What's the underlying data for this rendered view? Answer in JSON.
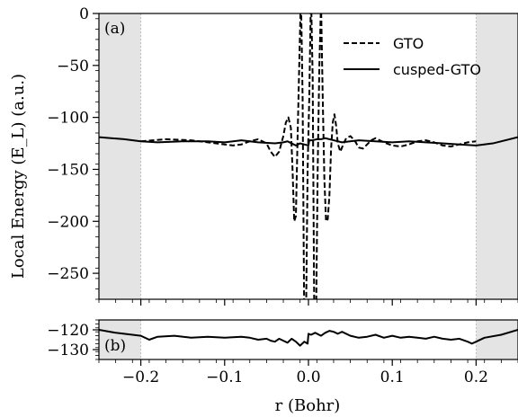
{
  "chart_data": [
    {
      "panel": "(a)",
      "type": "line",
      "xlabel": "r (Bohr)",
      "ylabel": "Local Energy (E_L) (a.u.)",
      "xlim": [
        -0.25,
        0.25
      ],
      "ylim": [
        -275,
        0
      ],
      "yticks": [
        0,
        -50,
        -100,
        -150,
        -200,
        -250
      ],
      "ytick_labels": [
        "0",
        "−50",
        "−100",
        "−150",
        "−200",
        "−250"
      ],
      "shaded_regions": [
        [
          -0.25,
          -0.2
        ],
        [
          0.2,
          0.25
        ]
      ],
      "shade_color": "#e4e4e4",
      "legend": {
        "position": "top-right"
      },
      "series": [
        {
          "name": "GTO",
          "style": "dashed",
          "color": "#000000",
          "x": [
            -0.2,
            -0.17,
            -0.14,
            -0.12,
            -0.1,
            -0.09,
            -0.08,
            -0.07,
            -0.06,
            -0.05,
            -0.045,
            -0.04,
            -0.035,
            -0.03,
            -0.027,
            -0.024,
            -0.021,
            -0.019,
            -0.017,
            -0.015,
            -0.013,
            -0.011,
            -0.009,
            -0.007,
            -0.005,
            -0.003,
            -0.001,
            0.001,
            0.003,
            0.005,
            0.007,
            0.009,
            0.011,
            0.013,
            0.015,
            0.017,
            0.019,
            0.021,
            0.023,
            0.025,
            0.027,
            0.029,
            0.031,
            0.033,
            0.035,
            0.038,
            0.041,
            0.045,
            0.05,
            0.055,
            0.06,
            0.065,
            0.07,
            0.075,
            0.08,
            0.09,
            0.1,
            0.11,
            0.12,
            0.13,
            0.14,
            0.15,
            0.16,
            0.17,
            0.18,
            0.19,
            0.2
          ],
          "y": [
            -123,
            -121,
            -122,
            -124,
            -126,
            -127,
            -126,
            -123,
            -121,
            -125,
            -133,
            -138,
            -133,
            -118,
            -105,
            -100,
            -110,
            -150,
            -200,
            -195,
            -120,
            -50,
            20,
            -80,
            -300,
            -300,
            -150,
            -80,
            20,
            -60,
            -300,
            -300,
            -150,
            -50,
            10,
            -80,
            -160,
            -200,
            -198,
            -175,
            -130,
            -105,
            -97,
            -108,
            -125,
            -133,
            -127,
            -120,
            -118,
            -122,
            -129,
            -130,
            -126,
            -122,
            -120,
            -124,
            -127,
            -128,
            -126,
            -123,
            -122,
            -124,
            -127,
            -128,
            -126,
            -124,
            -123
          ]
        },
        {
          "name": "cusped-GTO",
          "style": "solid",
          "color": "#000000",
          "x": [
            -0.25,
            -0.22,
            -0.2,
            -0.18,
            -0.15,
            -0.12,
            -0.1,
            -0.08,
            -0.06,
            -0.04,
            -0.03,
            -0.025,
            -0.02,
            -0.015,
            -0.01,
            -0.005,
            0.0,
            0.001,
            0.005,
            0.01,
            0.015,
            0.02,
            0.03,
            0.04,
            0.06,
            0.08,
            0.1,
            0.12,
            0.14,
            0.16,
            0.18,
            0.2,
            0.22,
            0.25
          ],
          "y": [
            -119,
            -121,
            -123,
            -124,
            -123,
            -123,
            -124,
            -122,
            -124,
            -125,
            -124,
            -123,
            -125,
            -127,
            -125,
            -126,
            -127,
            -122,
            -122,
            -121,
            -121,
            -120,
            -122,
            -124,
            -122,
            -123,
            -124,
            -123,
            -124,
            -125,
            -126,
            -127,
            -125,
            -119
          ]
        }
      ]
    },
    {
      "panel": "(b)",
      "type": "line",
      "xlim": [
        -0.25,
        0.25
      ],
      "ylim": [
        -135,
        -115
      ],
      "yticks": [
        -120,
        -130
      ],
      "ytick_labels": [
        "−120",
        "−130"
      ],
      "xticks": [
        -0.2,
        -0.1,
        0.0,
        0.1,
        0.2
      ],
      "xtick_labels": [
        "−0.2",
        "−0.1",
        "0.0",
        "0.1",
        "0.2"
      ],
      "shaded_regions": [
        [
          -0.25,
          -0.2
        ],
        [
          0.2,
          0.25
        ]
      ],
      "series": [
        {
          "name": "cusped-GTO",
          "style": "solid",
          "color": "#000000",
          "x": [
            -0.25,
            -0.23,
            -0.21,
            -0.2,
            -0.19,
            -0.18,
            -0.16,
            -0.14,
            -0.12,
            -0.1,
            -0.08,
            -0.07,
            -0.06,
            -0.05,
            -0.045,
            -0.04,
            -0.035,
            -0.03,
            -0.025,
            -0.02,
            -0.015,
            -0.01,
            -0.005,
            -0.001,
            0.0,
            0.003,
            0.008,
            0.015,
            0.02,
            0.025,
            0.03,
            0.035,
            0.04,
            0.05,
            0.06,
            0.07,
            0.08,
            0.09,
            0.1,
            0.11,
            0.12,
            0.13,
            0.14,
            0.15,
            0.16,
            0.17,
            0.18,
            0.19,
            0.195,
            0.2,
            0.21,
            0.23,
            0.25
          ],
          "y": [
            -120,
            -121.5,
            -122.5,
            -123,
            -125,
            -123.5,
            -123,
            -124,
            -123.5,
            -124,
            -123.5,
            -124,
            -125,
            -124.5,
            -125.5,
            -126,
            -124.5,
            -125.5,
            -126.5,
            -124.5,
            -126,
            -128,
            -126,
            -127,
            -122,
            -122.5,
            -121.5,
            -123,
            -121.5,
            -120.5,
            -121,
            -122,
            -121,
            -123,
            -124,
            -123.5,
            -122.5,
            -124,
            -123,
            -124,
            -123.5,
            -124,
            -124.5,
            -123.5,
            -124.5,
            -125,
            -124.5,
            -126,
            -127,
            -126,
            -124,
            -122.5,
            -120
          ]
        }
      ]
    }
  ]
}
